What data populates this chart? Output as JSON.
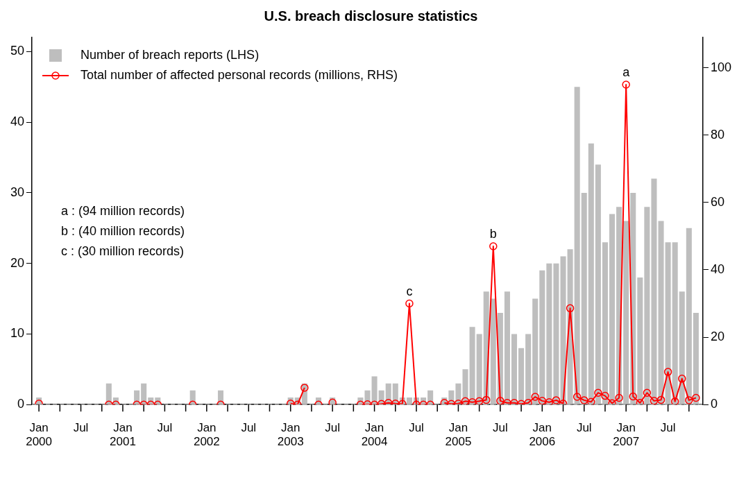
{
  "chart_data": {
    "type": "bar",
    "title": "U.S. breach disclosure statistics",
    "x": [
      "2000-01",
      "2000-02",
      "2000-03",
      "2000-04",
      "2000-05",
      "2000-06",
      "2000-07",
      "2000-08",
      "2000-09",
      "2000-10",
      "2000-11",
      "2000-12",
      "2001-01",
      "2001-02",
      "2001-03",
      "2001-04",
      "2001-05",
      "2001-06",
      "2001-07",
      "2001-08",
      "2001-09",
      "2001-10",
      "2001-11",
      "2001-12",
      "2002-01",
      "2002-02",
      "2002-03",
      "2002-04",
      "2002-05",
      "2002-06",
      "2002-07",
      "2002-08",
      "2002-09",
      "2002-10",
      "2002-11",
      "2002-12",
      "2003-01",
      "2003-02",
      "2003-03",
      "2003-04",
      "2003-05",
      "2003-06",
      "2003-07",
      "2003-08",
      "2003-09",
      "2003-10",
      "2003-11",
      "2003-12",
      "2004-01",
      "2004-02",
      "2004-03",
      "2004-04",
      "2004-05",
      "2004-06",
      "2004-07",
      "2004-08",
      "2004-09",
      "2004-10",
      "2004-11",
      "2004-12",
      "2005-01",
      "2005-02",
      "2005-03",
      "2005-04",
      "2005-05",
      "2005-06",
      "2005-07",
      "2005-08",
      "2005-09",
      "2005-10",
      "2005-11",
      "2005-12",
      "2006-01",
      "2006-02",
      "2006-03",
      "2006-04",
      "2006-05",
      "2006-06",
      "2006-07",
      "2006-08",
      "2006-09",
      "2006-10",
      "2006-11",
      "2006-12",
      "2007-01",
      "2007-02",
      "2007-03",
      "2007-04",
      "2007-05",
      "2007-06",
      "2007-07",
      "2007-08",
      "2007-09",
      "2007-10",
      "2007-11"
    ],
    "series": [
      {
        "name": "Number of breach reports (LHS)",
        "color": "#bebebe",
        "values": [
          1,
          0,
          0,
          0,
          0,
          0,
          0,
          0,
          0,
          0,
          3,
          1,
          0,
          0,
          2,
          3,
          1,
          1,
          0,
          0,
          0,
          0,
          2,
          0,
          0,
          0,
          2,
          0,
          0,
          0,
          0,
          0,
          0,
          0,
          0,
          0,
          1,
          1,
          3,
          0,
          1,
          0,
          1,
          0,
          0,
          0,
          1,
          2,
          4,
          2,
          3,
          3,
          1,
          1,
          1,
          1,
          2,
          0,
          1,
          2,
          3,
          5,
          11,
          10,
          16,
          15,
          13,
          16,
          10,
          8,
          10,
          15,
          19,
          20,
          20,
          21,
          22,
          45,
          30,
          37,
          34,
          23,
          27,
          28,
          26,
          30,
          18,
          28,
          32,
          26,
          23,
          23,
          16,
          25,
          13
        ]
      },
      {
        "type": "line",
        "name": "Total number of affected personal records (millions, RHS)",
        "color": "#ff0000",
        "axis": "y2",
        "marker": "circle",
        "line_style": "solid",
        "values": [
          0.3,
          null,
          null,
          null,
          null,
          null,
          null,
          null,
          null,
          null,
          0,
          0,
          null,
          null,
          0,
          0,
          0,
          0,
          null,
          null,
          null,
          null,
          0,
          null,
          null,
          null,
          0,
          null,
          null,
          null,
          null,
          null,
          null,
          null,
          null,
          null,
          0.3,
          0,
          5,
          null,
          0,
          null,
          0.6,
          null,
          null,
          null,
          0,
          0.1,
          0,
          0.2,
          0.5,
          0.3,
          0.2,
          30,
          0,
          0,
          0,
          null,
          0.5,
          0.2,
          0.3,
          1.0,
          0.7,
          1.0,
          1.4,
          47,
          1.1,
          0.5,
          0.5,
          0.2,
          0.5,
          2.3,
          1.1,
          0.7,
          1.3,
          0.3,
          28.6,
          2.3,
          1.3,
          0.8,
          3.5,
          2.6,
          0.4,
          2.0,
          95,
          2.4,
          0.5,
          3.5,
          1.1,
          1.4,
          9.7,
          0.9,
          7.7,
          1.3,
          2.0
        ]
      }
    ],
    "xlim": [
      "1999-12",
      "2007-12"
    ],
    "xticks": [
      {
        "value": "2000-01",
        "label": "Jan 2000"
      },
      {
        "value": "2000-04",
        "label": null
      },
      {
        "value": "2000-07",
        "label": "Jul"
      },
      {
        "value": "2000-10",
        "label": null
      },
      {
        "value": "2001-01",
        "label": "Jan 2001"
      },
      {
        "value": "2001-04",
        "label": null
      },
      {
        "value": "2001-07",
        "label": "Jul"
      },
      {
        "value": "2001-10",
        "label": null
      },
      {
        "value": "2002-01",
        "label": "Jan 2002"
      },
      {
        "value": "2002-04",
        "label": null
      },
      {
        "value": "2002-07",
        "label": "Jul"
      },
      {
        "value": "2002-10",
        "label": null
      },
      {
        "value": "2003-01",
        "label": "Jan 2003"
      },
      {
        "value": "2003-04",
        "label": null
      },
      {
        "value": "2003-07",
        "label": "Jul"
      },
      {
        "value": "2003-10",
        "label": null
      },
      {
        "value": "2004-01",
        "label": "Jan 2004"
      },
      {
        "value": "2004-04",
        "label": null
      },
      {
        "value": "2004-07",
        "label": "Jul"
      },
      {
        "value": "2004-10",
        "label": null
      },
      {
        "value": "2005-01",
        "label": "Jan 2005"
      },
      {
        "value": "2005-04",
        "label": null
      },
      {
        "value": "2005-07",
        "label": "Jul"
      },
      {
        "value": "2005-10",
        "label": null
      },
      {
        "value": "2006-01",
        "label": "Jan 2006"
      },
      {
        "value": "2006-04",
        "label": null
      },
      {
        "value": "2006-07",
        "label": "Jul"
      },
      {
        "value": "2006-10",
        "label": null
      },
      {
        "value": "2007-01",
        "label": "Jan 2007"
      },
      {
        "value": "2007-04",
        "label": null
      },
      {
        "value": "2007-07",
        "label": "Jul"
      },
      {
        "value": "2007-10",
        "label": null
      }
    ],
    "ylim": [
      0,
      52
    ],
    "yticks": [
      0,
      10,
      20,
      30,
      40,
      50
    ],
    "y2lim": [
      0,
      109
    ],
    "y2ticks": [
      0,
      20,
      40,
      60,
      80,
      100
    ],
    "ref_lines": [
      {
        "axis": "y",
        "value": 0,
        "color": "#bebebe",
        "line_style": "dashed"
      }
    ],
    "annotations": [
      "a",
      "b",
      "c",
      "a : (94 million records)",
      "b : (40 million records)",
      "c : (30 million records)"
    ],
    "legend": "top left",
    "grid": false
  }
}
